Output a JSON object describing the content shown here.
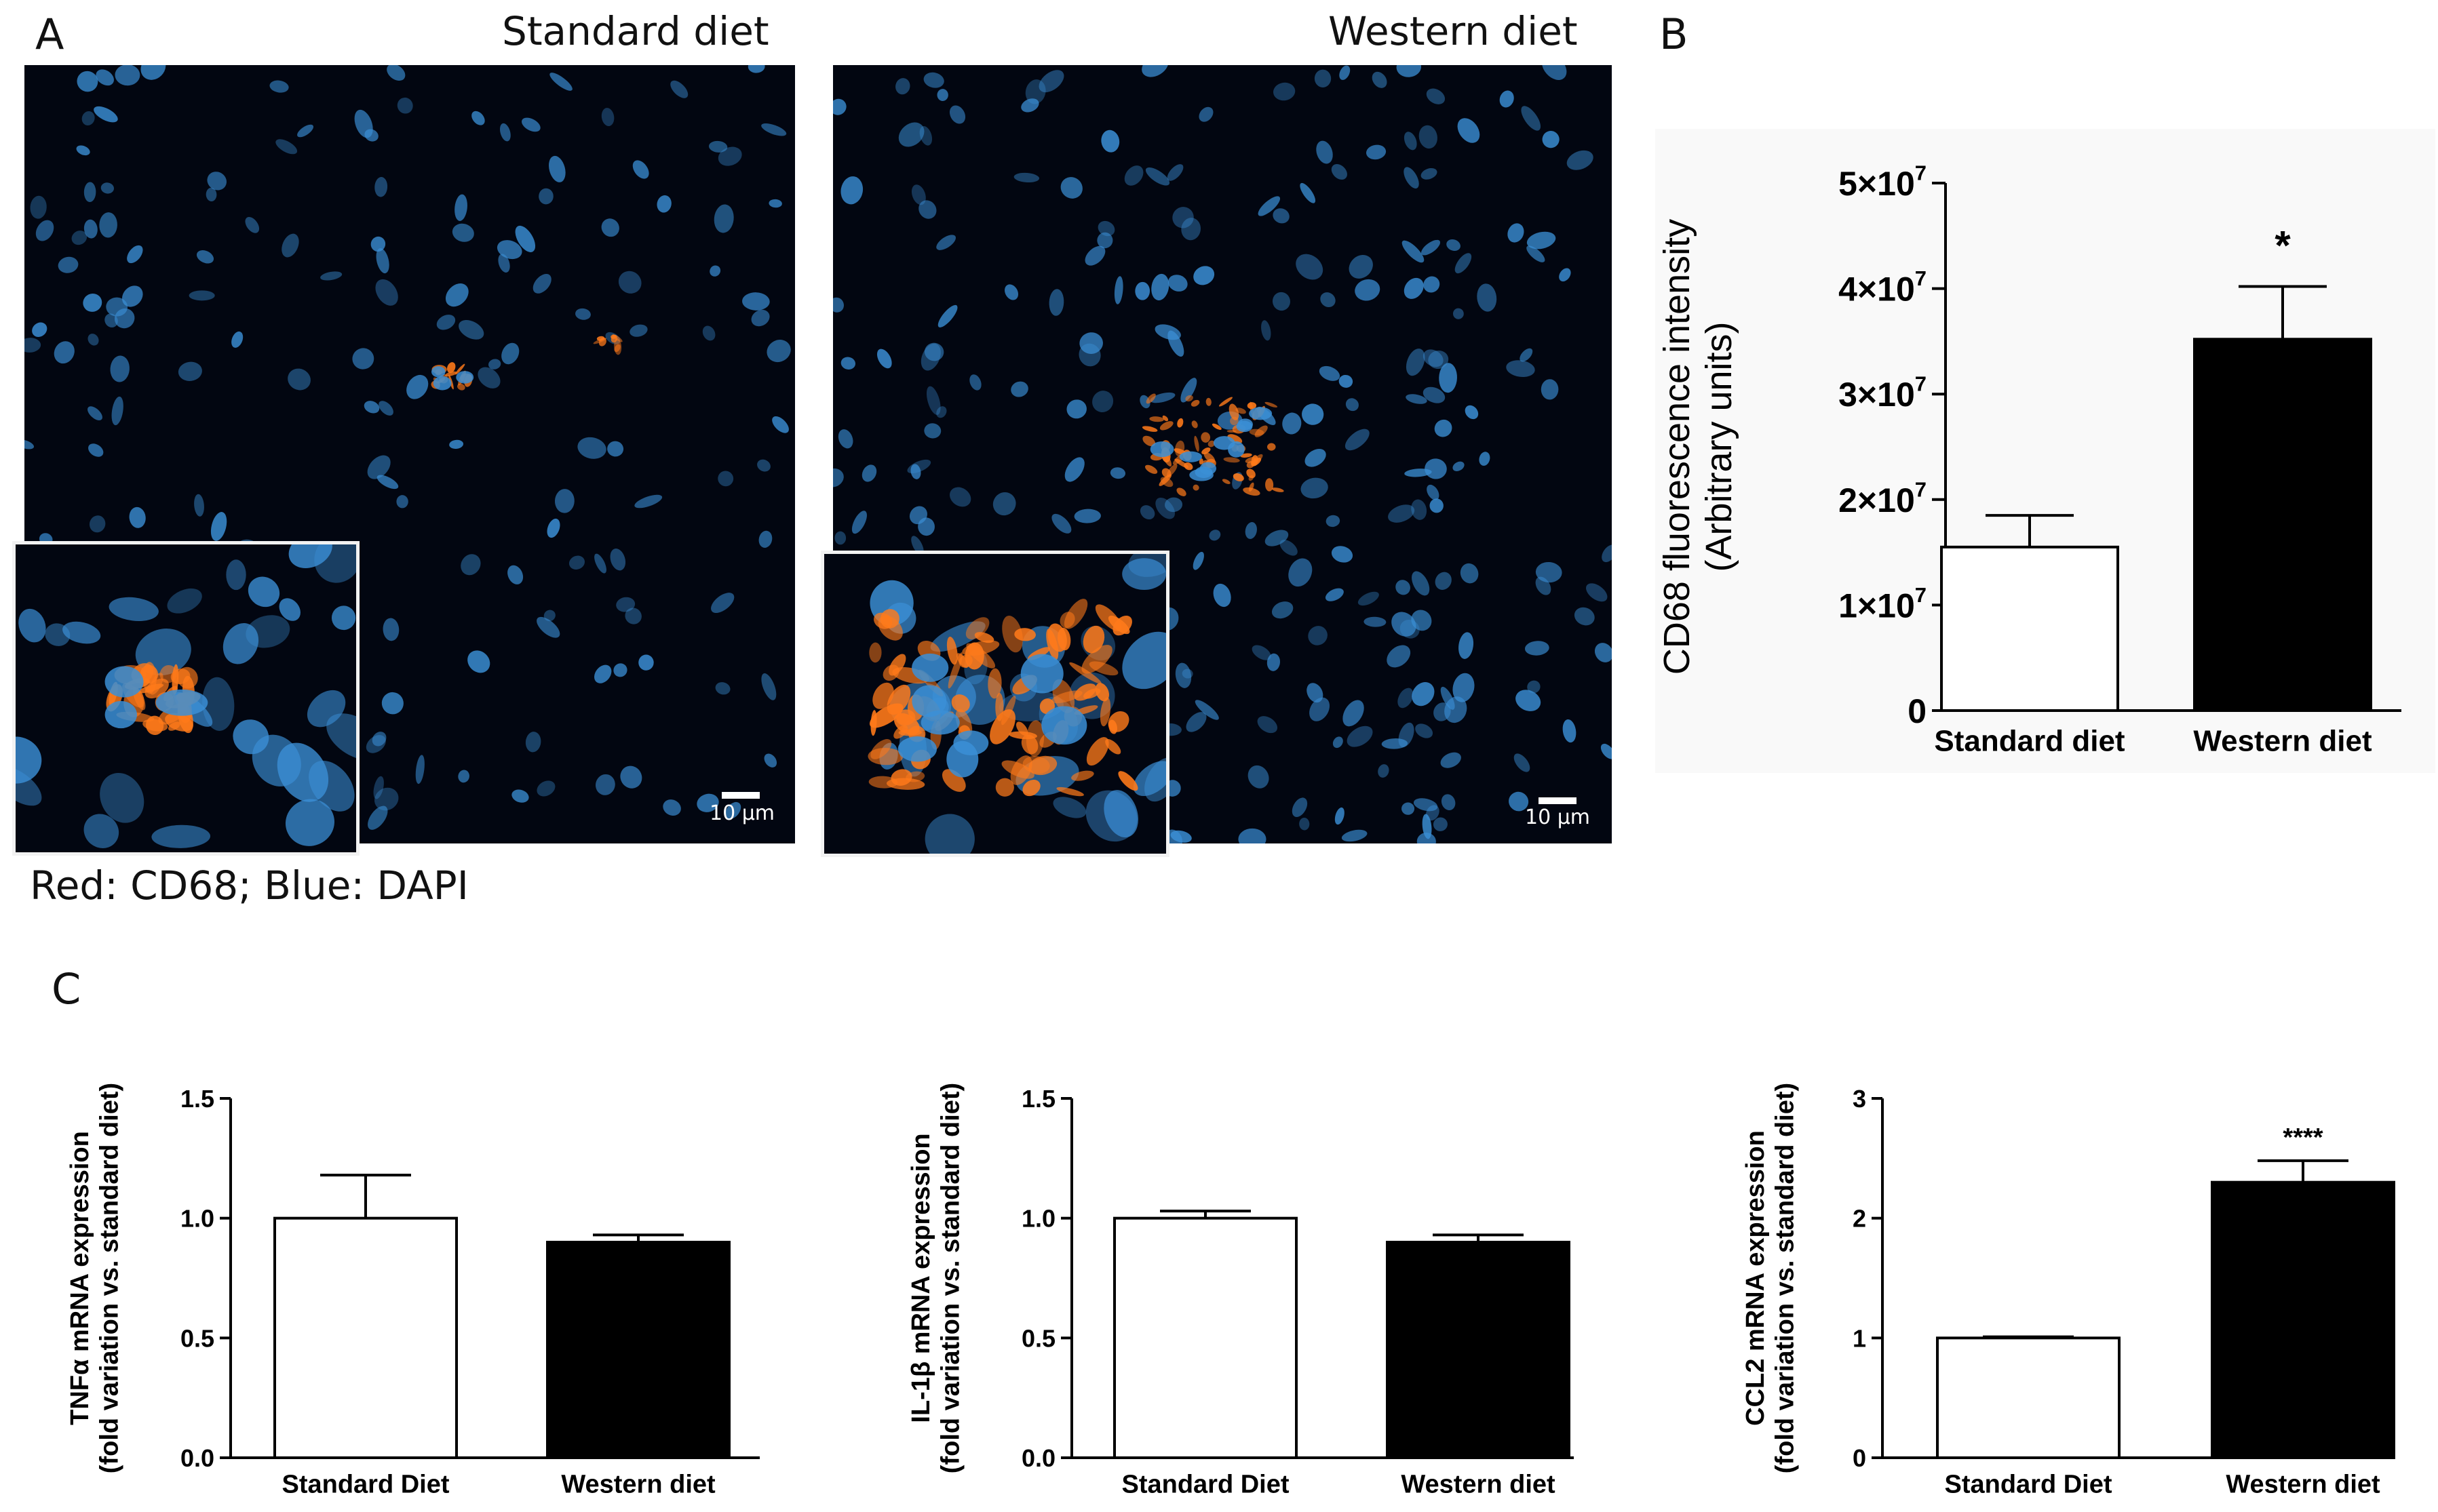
{
  "panels": {
    "a_label": "A",
    "b_label": "B",
    "c_label": "C"
  },
  "micrographs": {
    "left_title": "Standard diet",
    "right_title": "Western diet",
    "scale_left": "10 µm",
    "scale_right": "10 µm",
    "legend": "Red: CD68; Blue: DAPI",
    "colors": {
      "nuclei": "#3b8fd6",
      "cd68": "#ff7a1a",
      "background": "#020611"
    }
  },
  "chart_data": [
    {
      "id": "B",
      "type": "bar",
      "categories": [
        "Standard diet",
        "Western diet"
      ],
      "values": [
        15500000,
        35200000
      ],
      "errors": [
        3000000,
        5000000
      ],
      "ylabel": [
        "CD68 fluorescence intensity",
        "(Arbitrary units)"
      ],
      "ylim": [
        0,
        50000000
      ],
      "ticks": [
        0,
        10000000,
        20000000,
        30000000,
        40000000,
        50000000
      ],
      "tick_labels": [
        {
          "base": "0",
          "exp": ""
        },
        {
          "base": "1×10",
          "exp": "7"
        },
        {
          "base": "2×10",
          "exp": "7"
        },
        {
          "base": "3×10",
          "exp": "7"
        },
        {
          "base": "4×10",
          "exp": "7"
        },
        {
          "base": "5×10",
          "exp": "7"
        }
      ],
      "annotations": [
        "",
        "*"
      ],
      "bar_colors": [
        "#ffffff",
        "#000000"
      ],
      "background": "#f9f9f9"
    },
    {
      "id": "C1",
      "type": "bar",
      "categories": [
        "Standard Diet",
        "Western diet"
      ],
      "values": [
        1.0,
        0.9
      ],
      "errors": [
        0.18,
        0.03
      ],
      "ylabel": [
        "TNFα mRNA expression",
        "(fold variation vs. standard diet)"
      ],
      "ylim": [
        0,
        1.5
      ],
      "ticks": [
        0,
        0.5,
        1.0,
        1.5
      ],
      "tick_labels": [
        {
          "base": "0.0",
          "exp": ""
        },
        {
          "base": "0.5",
          "exp": ""
        },
        {
          "base": "1.0",
          "exp": ""
        },
        {
          "base": "1.5",
          "exp": ""
        }
      ],
      "annotations": [
        "",
        ""
      ],
      "bar_colors": [
        "#ffffff",
        "#000000"
      ]
    },
    {
      "id": "C2",
      "type": "bar",
      "categories": [
        "Standard Diet",
        "Western diet"
      ],
      "values": [
        1.0,
        0.9
      ],
      "errors": [
        0.03,
        0.03
      ],
      "ylabel": [
        "IL-1β mRNA expression",
        "(fold variation vs. standard diet)"
      ],
      "ylim": [
        0,
        1.5
      ],
      "ticks": [
        0,
        0.5,
        1.0,
        1.5
      ],
      "tick_labels": [
        {
          "base": "0.0",
          "exp": ""
        },
        {
          "base": "0.5",
          "exp": ""
        },
        {
          "base": "1.0",
          "exp": ""
        },
        {
          "base": "1.5",
          "exp": ""
        }
      ],
      "annotations": [
        "",
        ""
      ],
      "bar_colors": [
        "#ffffff",
        "#000000"
      ]
    },
    {
      "id": "C3",
      "type": "bar",
      "categories": [
        "Standard Diet",
        "Western diet"
      ],
      "values": [
        1.0,
        2.3
      ],
      "errors": [
        0.01,
        0.18
      ],
      "ylabel": [
        "CCL2 mRNA expression",
        "(fold variation vs. standard diet)"
      ],
      "ylim": [
        0,
        3
      ],
      "ticks": [
        0,
        1,
        2,
        3
      ],
      "tick_labels": [
        {
          "base": "0",
          "exp": ""
        },
        {
          "base": "1",
          "exp": ""
        },
        {
          "base": "2",
          "exp": ""
        },
        {
          "base": "3",
          "exp": ""
        }
      ],
      "annotations": [
        "",
        "****"
      ],
      "bar_colors": [
        "#ffffff",
        "#000000"
      ]
    }
  ]
}
